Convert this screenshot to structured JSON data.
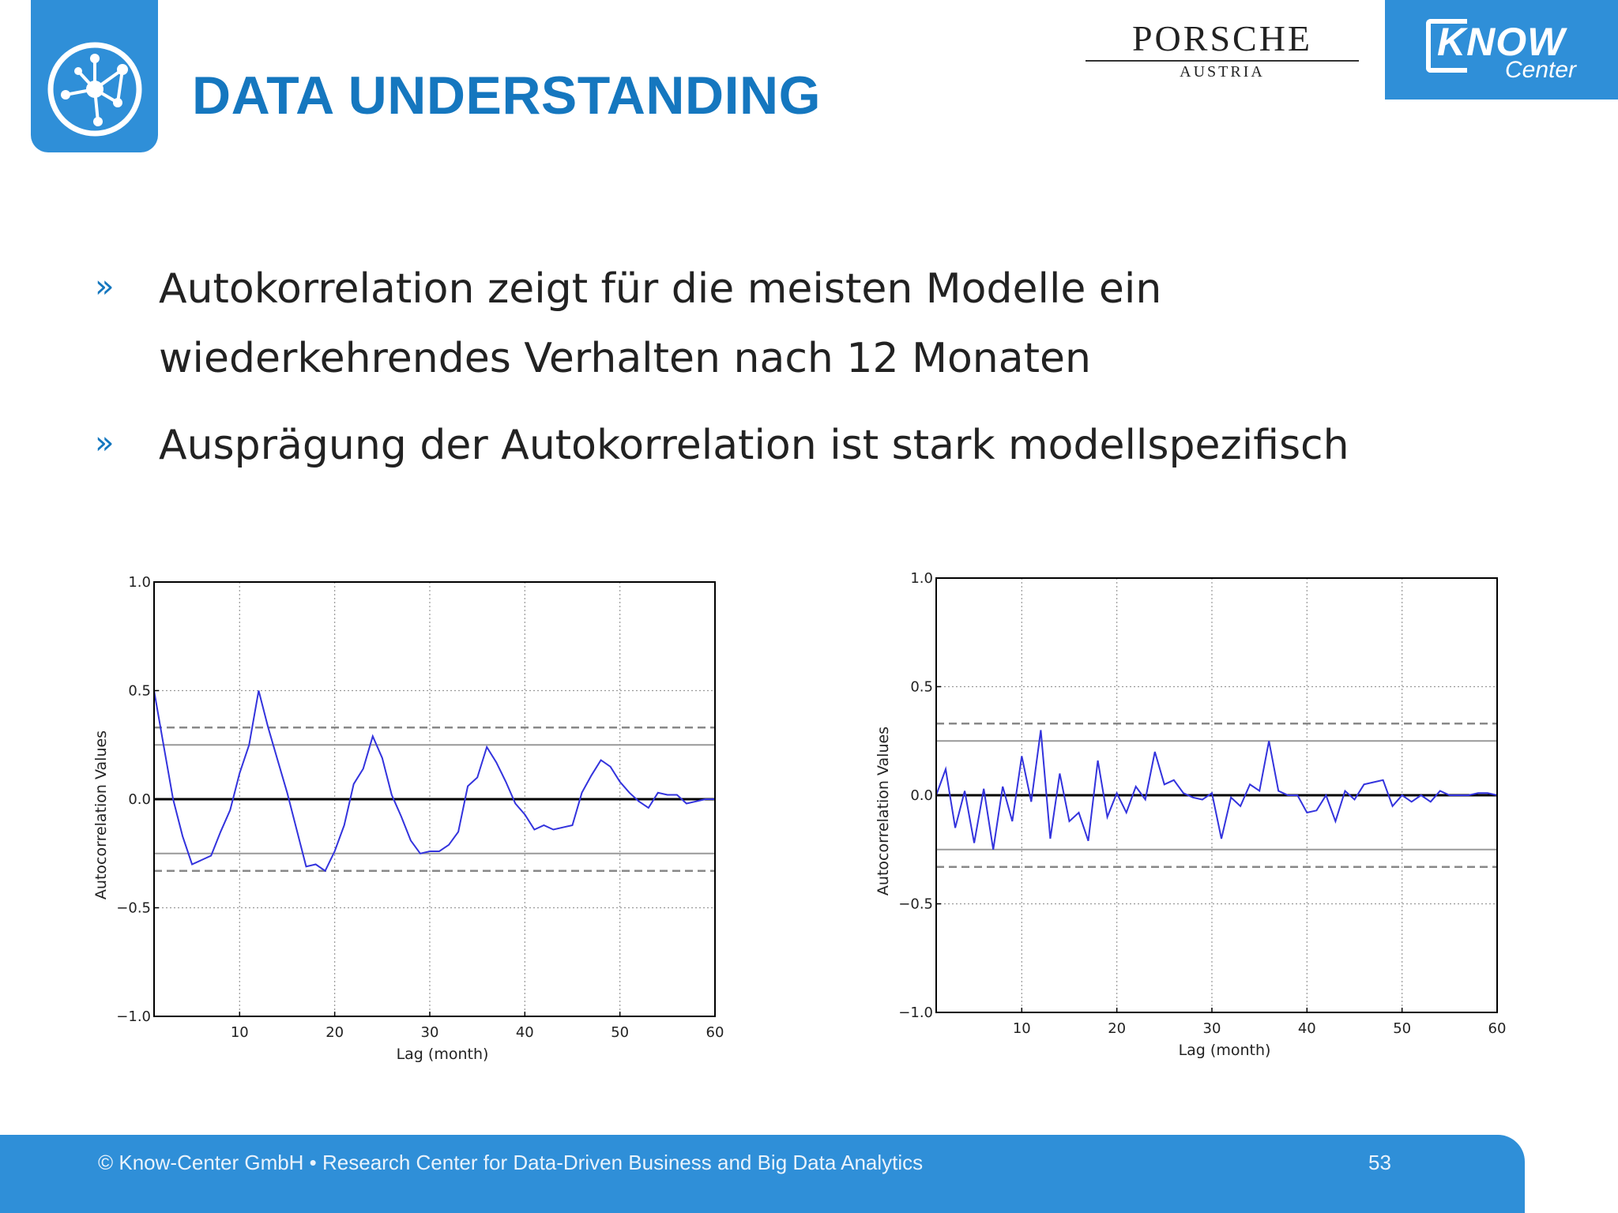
{
  "header": {
    "title": "DATA UNDERSTANDING",
    "porsche": {
      "word": "PORSCHE",
      "sub": "AUSTRIA"
    },
    "know_center": {
      "word": "KNOW",
      "sub": "Center"
    }
  },
  "bullets": [
    {
      "marker": "»",
      "text": "Autokorrelation zeigt für die meisten Modelle ein wiederkehrendes Verhalten nach 12 Monaten"
    },
    {
      "marker": "»",
      "text": "Ausprägung der Autokorrelation ist stark modellspezifisch"
    }
  ],
  "chart_data": [
    {
      "type": "line",
      "xlabel": "Lag (month)",
      "ylabel": "Autocorrelation Values",
      "xlim": [
        1,
        60
      ],
      "ylim": [
        -1.0,
        1.0
      ],
      "xticks": [
        10,
        20,
        30,
        40,
        50,
        60
      ],
      "yticks": [
        "1.0",
        "0.5",
        "0.0",
        "−0.5",
        "−1.0"
      ],
      "grid": true,
      "reference_lines": {
        "solid": [
          0.25,
          -0.25
        ],
        "dashed": [
          0.33,
          -0.33
        ]
      },
      "line_color": "#3333dd",
      "x": [
        1,
        2,
        3,
        4,
        5,
        6,
        7,
        8,
        9,
        10,
        11,
        12,
        13,
        14,
        15,
        16,
        17,
        18,
        19,
        20,
        21,
        22,
        23,
        24,
        25,
        26,
        27,
        28,
        29,
        30,
        31,
        32,
        33,
        34,
        35,
        36,
        37,
        38,
        39,
        40,
        41,
        42,
        43,
        44,
        45,
        46,
        47,
        48,
        49,
        50,
        51,
        52,
        53,
        54,
        55,
        56,
        57,
        58,
        59,
        60
      ],
      "values": [
        0.5,
        0.25,
        0.0,
        -0.17,
        -0.3,
        -0.28,
        -0.26,
        -0.15,
        -0.05,
        0.12,
        0.25,
        0.5,
        0.33,
        0.18,
        0.03,
        -0.14,
        -0.31,
        -0.3,
        -0.33,
        -0.24,
        -0.12,
        0.07,
        0.14,
        0.29,
        0.19,
        0.02,
        -0.08,
        -0.19,
        -0.25,
        -0.24,
        -0.24,
        -0.21,
        -0.15,
        0.06,
        0.1,
        0.24,
        0.17,
        0.08,
        -0.02,
        -0.07,
        -0.14,
        -0.12,
        -0.14,
        -0.13,
        -0.12,
        0.03,
        0.11,
        0.18,
        0.15,
        0.08,
        0.03,
        -0.01,
        -0.04,
        0.03,
        0.02,
        0.02,
        -0.02,
        -0.01,
        0.0,
        0.0
      ]
    },
    {
      "type": "line",
      "xlabel": "Lag (month)",
      "ylabel": "Autocorrelation Values",
      "xlim": [
        1,
        60
      ],
      "ylim": [
        -1.0,
        1.0
      ],
      "xticks": [
        10,
        20,
        30,
        40,
        50,
        60
      ],
      "yticks": [
        "1.0",
        "0.5",
        "0.0",
        "−0.5",
        "−1.0"
      ],
      "grid": true,
      "reference_lines": {
        "solid": [
          0.25,
          -0.25
        ],
        "dashed": [
          0.33,
          -0.33
        ]
      },
      "line_color": "#3333dd",
      "x": [
        1,
        2,
        3,
        4,
        5,
        6,
        7,
        8,
        9,
        10,
        11,
        12,
        13,
        14,
        15,
        16,
        17,
        18,
        19,
        20,
        21,
        22,
        23,
        24,
        25,
        26,
        27,
        28,
        29,
        30,
        31,
        32,
        33,
        34,
        35,
        36,
        37,
        38,
        39,
        40,
        41,
        42,
        43,
        44,
        45,
        46,
        47,
        48,
        49,
        50,
        51,
        52,
        53,
        54,
        55,
        56,
        57,
        58,
        59,
        60
      ],
      "values": [
        0.0,
        0.12,
        -0.15,
        0.02,
        -0.22,
        0.03,
        -0.25,
        0.04,
        -0.12,
        0.18,
        -0.03,
        0.3,
        -0.2,
        0.1,
        -0.12,
        -0.08,
        -0.21,
        0.16,
        -0.1,
        0.01,
        -0.08,
        0.04,
        -0.02,
        0.2,
        0.05,
        0.07,
        0.01,
        -0.01,
        -0.02,
        0.01,
        -0.2,
        -0.01,
        -0.05,
        0.05,
        0.02,
        0.25,
        0.02,
        0.0,
        0.0,
        -0.08,
        -0.07,
        0.0,
        -0.12,
        0.02,
        -0.02,
        0.05,
        0.06,
        0.07,
        -0.05,
        0.0,
        -0.03,
        0.0,
        -0.03,
        0.02,
        0.0,
        0.0,
        0.0,
        0.01,
        0.01,
        0.0
      ]
    }
  ],
  "footer": {
    "text": "© Know-Center GmbH • Research Center for Data-Driven Business and Big Data Analytics",
    "page": "53"
  }
}
